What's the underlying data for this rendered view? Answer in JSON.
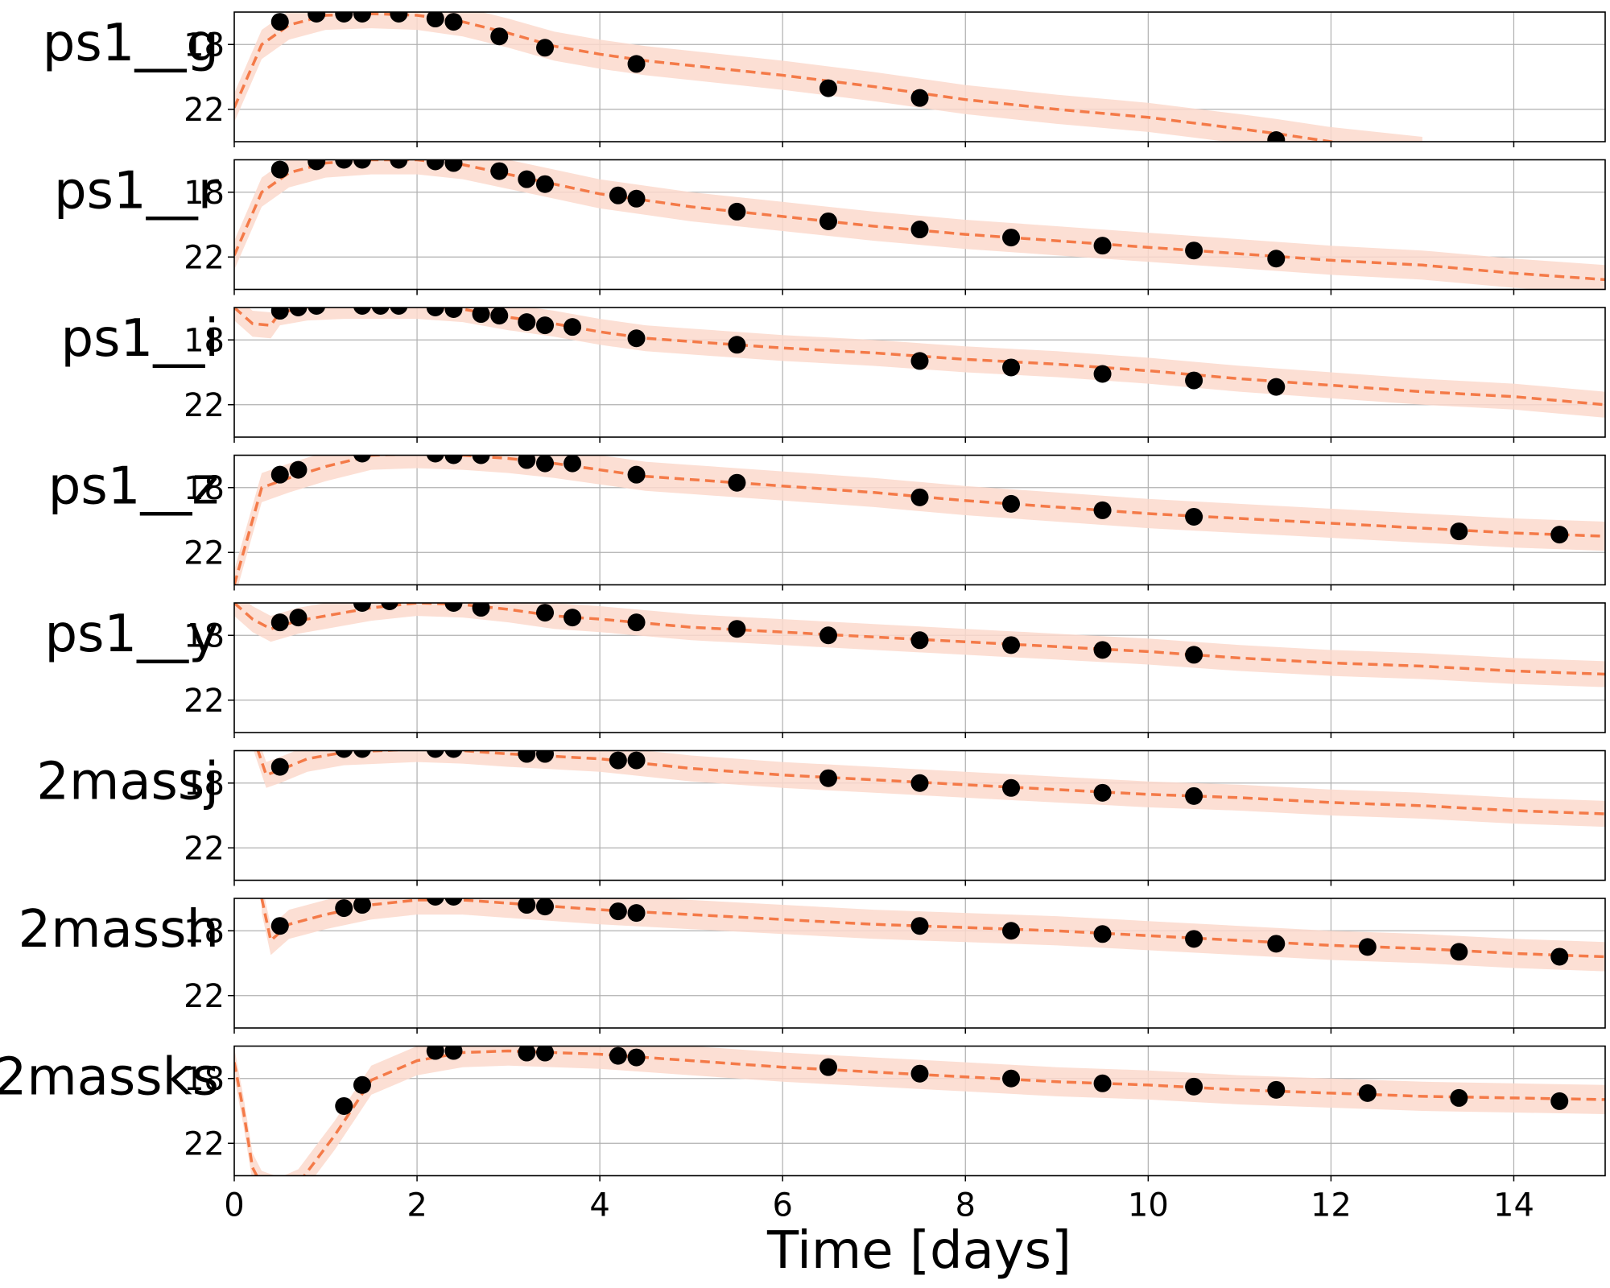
{
  "chart_data": {
    "type": "line",
    "xlabel": "Time [days]",
    "xlim": [
      0,
      15
    ],
    "ylim": [
      24,
      16
    ],
    "y_inverted": true,
    "x_ticks": [
      0,
      2,
      4,
      6,
      8,
      10,
      12,
      14
    ],
    "x_tick_labels": [
      "0",
      "2",
      "4",
      "6",
      "8",
      "10",
      "12",
      "14"
    ],
    "y_ticks": [
      18,
      22
    ],
    "y_tick_labels": [
      "18",
      "22"
    ],
    "grid": true,
    "colors": {
      "model_line": "#f47a48",
      "band": "#fcd9cc",
      "points": "#000000",
      "grid": "#b0b0b0"
    },
    "panels": [
      {
        "label": "ps1__g",
        "obs": [
          [
            0.5,
            16.6
          ],
          [
            0.9,
            16.1
          ],
          [
            1.2,
            16.1
          ],
          [
            1.4,
            16.1
          ],
          [
            1.8,
            16.1
          ],
          [
            2.2,
            16.4
          ],
          [
            2.4,
            16.6
          ],
          [
            2.9,
            17.5
          ],
          [
            3.4,
            18.2
          ],
          [
            4.4,
            19.2
          ],
          [
            6.5,
            20.7
          ],
          [
            7.5,
            21.3
          ],
          [
            11.4,
            23.9
          ]
        ],
        "model": [
          [
            0,
            21.9
          ],
          [
            0.3,
            18.0
          ],
          [
            0.6,
            16.8
          ],
          [
            1.0,
            16.2
          ],
          [
            1.5,
            16.1
          ],
          [
            2.0,
            16.2
          ],
          [
            2.5,
            16.6
          ],
          [
            3.0,
            17.3
          ],
          [
            3.5,
            18.1
          ],
          [
            4.0,
            18.6
          ],
          [
            4.5,
            19.0
          ],
          [
            5.0,
            19.3
          ],
          [
            6.0,
            19.9
          ],
          [
            7.0,
            20.6
          ],
          [
            8.0,
            21.4
          ],
          [
            9.0,
            22.0
          ],
          [
            10.0,
            22.5
          ],
          [
            11.0,
            23.2
          ],
          [
            11.4,
            23.5
          ],
          [
            12.0,
            24.0
          ],
          [
            13.0,
            24.6
          ]
        ],
        "band_width": 0.9
      },
      {
        "label": "ps1__r",
        "obs": [
          [
            0.5,
            16.6
          ],
          [
            0.9,
            16.1
          ],
          [
            1.2,
            16.0
          ],
          [
            1.4,
            16.0
          ],
          [
            1.8,
            16.0
          ],
          [
            2.2,
            16.1
          ],
          [
            2.4,
            16.2
          ],
          [
            2.9,
            16.7
          ],
          [
            3.2,
            17.2
          ],
          [
            3.4,
            17.5
          ],
          [
            4.2,
            18.2
          ],
          [
            4.4,
            18.4
          ],
          [
            5.5,
            19.2
          ],
          [
            6.5,
            19.8
          ],
          [
            7.5,
            20.3
          ],
          [
            8.5,
            20.8
          ],
          [
            9.5,
            21.3
          ],
          [
            10.5,
            21.6
          ],
          [
            11.4,
            22.1
          ]
        ],
        "model": [
          [
            0,
            21.9
          ],
          [
            0.3,
            18.0
          ],
          [
            0.6,
            16.8
          ],
          [
            1.0,
            16.2
          ],
          [
            1.5,
            16.0
          ],
          [
            2.0,
            16.0
          ],
          [
            2.5,
            16.3
          ],
          [
            3.0,
            16.9
          ],
          [
            3.5,
            17.5
          ],
          [
            4.0,
            18.1
          ],
          [
            4.5,
            18.5
          ],
          [
            5.0,
            18.9
          ],
          [
            6.0,
            19.5
          ],
          [
            7.0,
            20.1
          ],
          [
            8.0,
            20.6
          ],
          [
            9.0,
            21.0
          ],
          [
            10.0,
            21.4
          ],
          [
            11.0,
            21.8
          ],
          [
            12.0,
            22.2
          ],
          [
            13.0,
            22.5
          ],
          [
            14.0,
            23.0
          ],
          [
            15.0,
            23.4
          ]
        ],
        "band_width": 0.9
      },
      {
        "label": "ps1__i",
        "obs": [
          [
            0.5,
            16.2
          ],
          [
            0.7,
            16.0
          ],
          [
            0.9,
            15.9
          ],
          [
            1.4,
            15.9
          ],
          [
            1.6,
            15.9
          ],
          [
            1.8,
            15.9
          ],
          [
            2.2,
            16.0
          ],
          [
            2.4,
            16.1
          ],
          [
            2.7,
            16.4
          ],
          [
            2.9,
            16.5
          ],
          [
            3.2,
            16.9
          ],
          [
            3.4,
            17.1
          ],
          [
            3.7,
            17.2
          ],
          [
            4.4,
            17.9
          ],
          [
            5.5,
            18.3
          ],
          [
            7.5,
            19.3
          ],
          [
            8.5,
            19.7
          ],
          [
            9.5,
            20.1
          ],
          [
            10.5,
            20.5
          ],
          [
            11.4,
            20.9
          ]
        ],
        "model": [
          [
            0,
            16.0
          ],
          [
            0.2,
            17.0
          ],
          [
            0.4,
            17.1
          ],
          [
            0.5,
            16.3
          ],
          [
            0.8,
            16.0
          ],
          [
            1.2,
            15.9
          ],
          [
            2.0,
            15.9
          ],
          [
            2.5,
            16.1
          ],
          [
            3.0,
            16.6
          ],
          [
            3.5,
            17.0
          ],
          [
            4.0,
            17.5
          ],
          [
            4.5,
            17.9
          ],
          [
            5.0,
            18.1
          ],
          [
            6.0,
            18.5
          ],
          [
            7.0,
            18.8
          ],
          [
            8.0,
            19.2
          ],
          [
            9.0,
            19.5
          ],
          [
            10.0,
            19.9
          ],
          [
            11.0,
            20.4
          ],
          [
            12.0,
            20.8
          ],
          [
            13.0,
            21.2
          ],
          [
            14.0,
            21.5
          ],
          [
            15.0,
            22.0
          ]
        ],
        "band_width": 0.8
      },
      {
        "label": "ps1__z",
        "obs": [
          [
            0.5,
            17.2
          ],
          [
            0.7,
            16.9
          ],
          [
            1.4,
            15.9
          ],
          [
            2.2,
            15.9
          ],
          [
            2.4,
            16.0
          ],
          [
            2.7,
            16.0
          ],
          [
            3.2,
            16.3
          ],
          [
            3.4,
            16.5
          ],
          [
            3.7,
            16.5
          ],
          [
            4.4,
            17.2
          ],
          [
            5.5,
            17.7
          ],
          [
            7.5,
            18.6
          ],
          [
            8.5,
            19.0
          ],
          [
            9.5,
            19.4
          ],
          [
            10.5,
            19.8
          ],
          [
            13.4,
            20.7
          ],
          [
            14.5,
            20.9
          ]
        ],
        "model": [
          [
            0,
            24.0
          ],
          [
            0.3,
            18.0
          ],
          [
            0.6,
            17.4
          ],
          [
            1.0,
            16.7
          ],
          [
            1.5,
            16.0
          ],
          [
            2.0,
            15.9
          ],
          [
            2.5,
            16.0
          ],
          [
            3.0,
            16.2
          ],
          [
            3.5,
            16.5
          ],
          [
            4.0,
            16.9
          ],
          [
            4.5,
            17.3
          ],
          [
            5.0,
            17.5
          ],
          [
            6.0,
            17.9
          ],
          [
            7.0,
            18.3
          ],
          [
            8.0,
            18.8
          ],
          [
            9.0,
            19.2
          ],
          [
            10.0,
            19.6
          ],
          [
            11.0,
            19.9
          ],
          [
            12.0,
            20.2
          ],
          [
            13.0,
            20.5
          ],
          [
            14.0,
            20.8
          ],
          [
            15.0,
            21.0
          ]
        ],
        "band_width": 0.9
      },
      {
        "label": "ps1__y",
        "obs": [
          [
            0.5,
            17.2
          ],
          [
            0.7,
            16.9
          ],
          [
            1.4,
            16.0
          ],
          [
            1.7,
            15.9
          ],
          [
            2.4,
            16.0
          ],
          [
            2.7,
            16.3
          ],
          [
            3.4,
            16.6
          ],
          [
            3.7,
            16.9
          ],
          [
            4.4,
            17.2
          ],
          [
            5.5,
            17.6
          ],
          [
            6.5,
            18.0
          ],
          [
            7.5,
            18.3
          ],
          [
            8.5,
            18.6
          ],
          [
            9.5,
            18.9
          ],
          [
            10.5,
            19.2
          ]
        ],
        "model": [
          [
            0,
            16.0
          ],
          [
            0.2,
            17.0
          ],
          [
            0.4,
            17.6
          ],
          [
            0.7,
            17.1
          ],
          [
            1.0,
            16.8
          ],
          [
            1.5,
            16.3
          ],
          [
            2.0,
            16.0
          ],
          [
            2.5,
            16.1
          ],
          [
            3.0,
            16.4
          ],
          [
            3.5,
            16.8
          ],
          [
            4.0,
            17.0
          ],
          [
            5.0,
            17.5
          ],
          [
            6.0,
            17.8
          ],
          [
            7.0,
            18.1
          ],
          [
            8.0,
            18.4
          ],
          [
            9.0,
            18.7
          ],
          [
            10.0,
            19.0
          ],
          [
            11.0,
            19.4
          ],
          [
            12.0,
            19.7
          ],
          [
            13.0,
            19.9
          ],
          [
            14.0,
            20.2
          ],
          [
            15.0,
            20.4
          ]
        ],
        "band_width": 0.8
      },
      {
        "label": "2massj",
        "obs": [
          [
            0.5,
            17.0
          ],
          [
            1.2,
            15.9
          ],
          [
            1.4,
            15.9
          ],
          [
            2.2,
            15.9
          ],
          [
            2.4,
            15.9
          ],
          [
            3.2,
            16.2
          ],
          [
            3.4,
            16.2
          ],
          [
            4.2,
            16.6
          ],
          [
            4.4,
            16.6
          ],
          [
            6.5,
            17.7
          ],
          [
            7.5,
            18.0
          ],
          [
            8.5,
            18.3
          ],
          [
            9.5,
            18.6
          ],
          [
            10.5,
            18.8
          ]
        ],
        "model": [
          [
            0.2,
            15.0
          ],
          [
            0.35,
            17.5
          ],
          [
            0.5,
            17.2
          ],
          [
            0.8,
            16.5
          ],
          [
            1.2,
            16.1
          ],
          [
            2.0,
            15.9
          ],
          [
            2.5,
            16.0
          ],
          [
            3.0,
            16.2
          ],
          [
            4.0,
            16.5
          ],
          [
            5.0,
            17.1
          ],
          [
            6.0,
            17.5
          ],
          [
            7.0,
            17.8
          ],
          [
            8.0,
            18.1
          ],
          [
            9.0,
            18.4
          ],
          [
            10.0,
            18.7
          ],
          [
            11.0,
            18.9
          ],
          [
            12.0,
            19.2
          ],
          [
            13.0,
            19.4
          ],
          [
            14.0,
            19.7
          ],
          [
            15.0,
            19.9
          ]
        ],
        "band_width": 0.8
      },
      {
        "label": "2massh",
        "obs": [
          [
            0.5,
            17.7
          ],
          [
            1.2,
            16.6
          ],
          [
            1.4,
            16.4
          ],
          [
            2.2,
            15.9
          ],
          [
            2.4,
            15.9
          ],
          [
            3.2,
            16.4
          ],
          [
            3.4,
            16.5
          ],
          [
            4.2,
            16.8
          ],
          [
            4.4,
            16.9
          ],
          [
            7.5,
            17.7
          ],
          [
            8.5,
            18.0
          ],
          [
            9.5,
            18.2
          ],
          [
            10.5,
            18.5
          ],
          [
            11.4,
            18.8
          ],
          [
            12.4,
            19.0
          ],
          [
            13.4,
            19.3
          ],
          [
            14.5,
            19.6
          ]
        ],
        "model": [
          [
            0.3,
            16.0
          ],
          [
            0.4,
            18.6
          ],
          [
            0.6,
            17.6
          ],
          [
            1.0,
            17.0
          ],
          [
            1.5,
            16.4
          ],
          [
            2.0,
            16.1
          ],
          [
            2.5,
            16.1
          ],
          [
            3.0,
            16.3
          ],
          [
            4.0,
            16.7
          ],
          [
            5.0,
            17.0
          ],
          [
            6.0,
            17.3
          ],
          [
            7.0,
            17.6
          ],
          [
            8.0,
            17.8
          ],
          [
            9.0,
            18.0
          ],
          [
            10.0,
            18.3
          ],
          [
            11.0,
            18.6
          ],
          [
            12.0,
            18.9
          ],
          [
            13.0,
            19.1
          ],
          [
            14.0,
            19.4
          ],
          [
            15.0,
            19.6
          ]
        ],
        "band_width": 0.9
      },
      {
        "label": "2massks",
        "obs": [
          [
            1.2,
            19.7
          ],
          [
            1.4,
            18.4
          ],
          [
            2.2,
            16.3
          ],
          [
            2.4,
            16.3
          ],
          [
            3.2,
            16.4
          ],
          [
            3.4,
            16.4
          ],
          [
            4.2,
            16.6
          ],
          [
            4.4,
            16.7
          ],
          [
            6.5,
            17.3
          ],
          [
            7.5,
            17.7
          ],
          [
            8.5,
            18.0
          ],
          [
            9.5,
            18.3
          ],
          [
            10.5,
            18.5
          ],
          [
            11.4,
            18.7
          ],
          [
            12.4,
            18.9
          ],
          [
            13.4,
            19.2
          ],
          [
            14.5,
            19.4
          ]
        ],
        "model": [
          [
            0,
            17.0
          ],
          [
            0.1,
            20.0
          ],
          [
            0.2,
            23.5
          ],
          [
            0.3,
            24.6
          ],
          [
            0.5,
            25.0
          ],
          [
            0.7,
            24.5
          ],
          [
            0.9,
            23.0
          ],
          [
            1.1,
            21.5
          ],
          [
            1.3,
            19.8
          ],
          [
            1.5,
            18.1
          ],
          [
            2.0,
            16.9
          ],
          [
            2.5,
            16.4
          ],
          [
            3.0,
            16.3
          ],
          [
            4.0,
            16.5
          ],
          [
            5.0,
            16.9
          ],
          [
            6.0,
            17.3
          ],
          [
            7.0,
            17.6
          ],
          [
            8.0,
            17.9
          ],
          [
            9.0,
            18.2
          ],
          [
            10.0,
            18.4
          ],
          [
            11.0,
            18.7
          ],
          [
            12.0,
            18.9
          ],
          [
            13.0,
            19.1
          ],
          [
            14.0,
            19.2
          ],
          [
            15.0,
            19.3
          ]
        ],
        "band_width": 0.9
      }
    ]
  }
}
